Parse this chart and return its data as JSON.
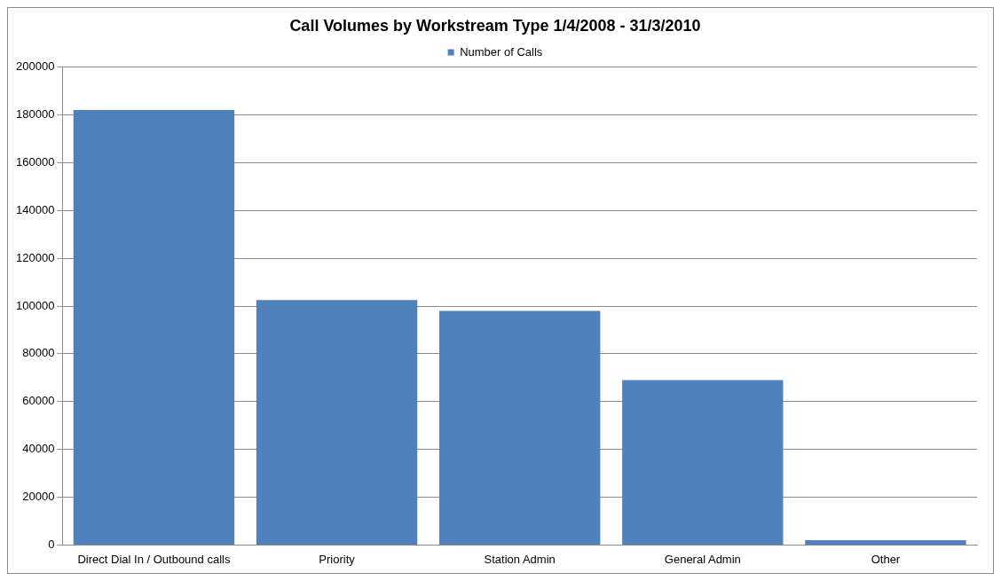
{
  "chart_data": {
    "type": "bar",
    "title": "Call Volumes by Workstream Type 1/4/2008 - 31/3/2010",
    "categories": [
      "Direct Dial In / Outbound calls",
      "Priority",
      "Station Admin",
      "General Admin",
      "Other"
    ],
    "series": [
      {
        "name": "Number of Calls",
        "color": "#4f81bd",
        "values": [
          182000,
          102500,
          98000,
          69000,
          2000
        ]
      }
    ],
    "ylim": [
      0,
      200000
    ],
    "yticks": [
      0,
      20000,
      40000,
      60000,
      80000,
      100000,
      120000,
      140000,
      160000,
      180000,
      200000
    ],
    "grid": "y",
    "legend": "top"
  }
}
